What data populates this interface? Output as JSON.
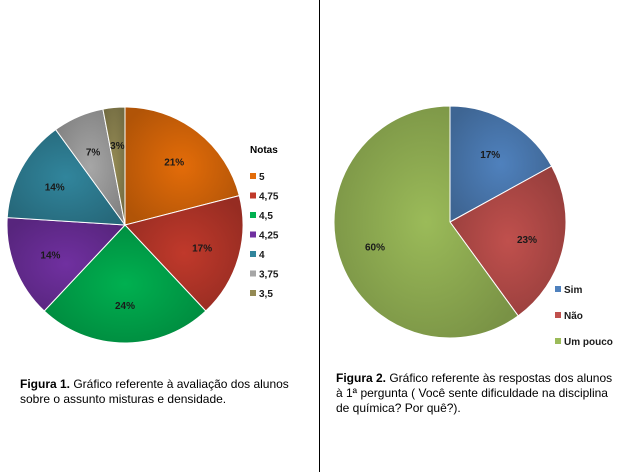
{
  "chart_data": [
    {
      "type": "pie",
      "legend_title": "Notas",
      "legend_position": "right",
      "categories": [
        "5",
        "4,75",
        "4,5",
        "4,25",
        "4",
        "3,75",
        "3,5"
      ],
      "values": [
        21,
        17,
        24,
        14,
        14,
        7,
        3
      ],
      "labels": [
        "21%",
        "17%",
        "24%",
        "14%",
        "14%",
        "7%",
        "3%"
      ],
      "colors": [
        "#e36c09",
        "#c0392b",
        "#00b050",
        "#7030a0",
        "#31859c",
        "#a6a6a6",
        "#948a54"
      ],
      "caption_label": "Figura 1.",
      "caption_text": " Gráfico referente  à avaliação  dos alunos sobre o assunto misturas e densidade."
    },
    {
      "type": "pie",
      "legend_position": "right",
      "categories": [
        "Sim",
        "Não",
        "Um pouco"
      ],
      "values": [
        17,
        23,
        60
      ],
      "labels": [
        "17%",
        "23%",
        "60%"
      ],
      "colors": [
        "#4f81bd",
        "#c0504d",
        "#9bbb59"
      ],
      "caption_label": "Figura 2.",
      "caption_text": " Gráfico referente  às respostas dos alunos à 1ª pergunta ( Você sente dificuldade na disciplina de química? Por quê?)."
    }
  ]
}
